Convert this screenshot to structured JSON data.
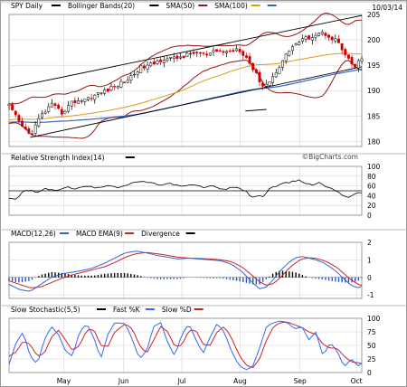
{
  "header": {
    "symbol_label": "SPY Daily",
    "date": "10/03/14",
    "watermark": "©BigCharts.com"
  },
  "colors": {
    "price_up": "#000000",
    "price_down": "#cc0000",
    "bollinger": "#8b1a1a",
    "sma50": "#d4a017",
    "sma100": "#3366cc",
    "channel": "#000000",
    "hist_pos": "#000000",
    "hist_neg": "#2255cc",
    "fast_k": "#3366ff",
    "slow_d": "#cc2222",
    "frame": "#888888",
    "grid": "#d6d6d6",
    "sep": "#bbbbbb"
  },
  "chart_data": [
    {
      "type": "candlestick",
      "name": "price",
      "legend": [
        {
          "label": "SPY Daily",
          "color": "#000000"
        },
        {
          "label": "Bollinger Bands(20)",
          "color": "#000000"
        },
        {
          "label": "SMA(50)",
          "color": "#8b1a1a"
        },
        {
          "label": "SMA(100)",
          "color": "#d4a017"
        },
        {
          "label": "",
          "color": "#3366cc"
        }
      ],
      "ylim": [
        179,
        205
      ],
      "yticks": [
        180,
        185,
        190,
        195,
        200,
        205
      ],
      "xlim": [
        0,
        1
      ],
      "anchors": [
        [
          0.0,
          187.0
        ],
        [
          0.03,
          183.5
        ],
        [
          0.06,
          181.2
        ],
        [
          0.09,
          185.0
        ],
        [
          0.12,
          187.2
        ],
        [
          0.15,
          185.6
        ],
        [
          0.18,
          187.8
        ],
        [
          0.22,
          188.4
        ],
        [
          0.26,
          189.6
        ],
        [
          0.3,
          190.8
        ],
        [
          0.34,
          192.3
        ],
        [
          0.37,
          194.5
        ],
        [
          0.4,
          195.0
        ],
        [
          0.44,
          196.4
        ],
        [
          0.47,
          196.3
        ],
        [
          0.5,
          196.9
        ],
        [
          0.53,
          197.6
        ],
        [
          0.56,
          196.9
        ],
        [
          0.59,
          197.8
        ],
        [
          0.62,
          197.6
        ],
        [
          0.65,
          198.4
        ],
        [
          0.675,
          196.4
        ],
        [
          0.7,
          193.2
        ],
        [
          0.72,
          191.0
        ],
        [
          0.74,
          191.8
        ],
        [
          0.76,
          194.2
        ],
        [
          0.78,
          196.4
        ],
        [
          0.8,
          198.6
        ],
        [
          0.83,
          199.9
        ],
        [
          0.86,
          200.8
        ],
        [
          0.88,
          201.4
        ],
        [
          0.9,
          201.1
        ],
        [
          0.92,
          200.2
        ],
        [
          0.935,
          199.4
        ],
        [
          0.95,
          197.0
        ],
        [
          0.965,
          195.8
        ],
        [
          0.98,
          194.4
        ],
        [
          0.99,
          195.6
        ],
        [
          1.0,
          196.2
        ]
      ],
      "channel_lines": [
        {
          "x": [
            0.0,
            1.0
          ],
          "y": [
            190.5,
            204.8
          ]
        },
        {
          "x": [
            0.06,
            1.0
          ],
          "y": [
            180.8,
            194.7
          ]
        }
      ],
      "segments": [
        {
          "x": [
            0.67,
            0.73
          ],
          "y": [
            186.0,
            186.3
          ]
        }
      ]
    },
    {
      "type": "line",
      "name": "rsi",
      "legend": [
        {
          "label": "Relative Strength Index(14)",
          "color": "#000000"
        }
      ],
      "ylim": [
        0,
        100
      ],
      "yticks": [
        0,
        20,
        40,
        60,
        80,
        100
      ],
      "reference_line": 50,
      "anchors": [
        [
          0.0,
          35
        ],
        [
          0.02,
          33
        ],
        [
          0.04,
          48
        ],
        [
          0.06,
          52
        ],
        [
          0.08,
          45
        ],
        [
          0.1,
          55
        ],
        [
          0.13,
          50
        ],
        [
          0.16,
          58
        ],
        [
          0.19,
          54
        ],
        [
          0.22,
          60
        ],
        [
          0.25,
          55
        ],
        [
          0.28,
          62
        ],
        [
          0.31,
          57
        ],
        [
          0.34,
          63
        ],
        [
          0.37,
          70
        ],
        [
          0.4,
          66
        ],
        [
          0.43,
          62
        ],
        [
          0.46,
          65
        ],
        [
          0.49,
          58
        ],
        [
          0.52,
          63
        ],
        [
          0.55,
          57
        ],
        [
          0.58,
          60
        ],
        [
          0.61,
          52
        ],
        [
          0.64,
          58
        ],
        [
          0.67,
          50
        ],
        [
          0.69,
          35
        ],
        [
          0.705,
          42
        ],
        [
          0.72,
          38
        ],
        [
          0.74,
          55
        ],
        [
          0.76,
          60
        ],
        [
          0.78,
          65
        ],
        [
          0.8,
          68
        ],
        [
          0.82,
          72
        ],
        [
          0.84,
          66
        ],
        [
          0.86,
          62
        ],
        [
          0.88,
          67
        ],
        [
          0.9,
          58
        ],
        [
          0.92,
          54
        ],
        [
          0.94,
          44
        ],
        [
          0.96,
          36
        ],
        [
          0.975,
          42
        ],
        [
          0.99,
          45
        ],
        [
          1.0,
          46
        ]
      ]
    },
    {
      "type": "line",
      "name": "macd",
      "legend": [
        {
          "label": "MACD(12,26)",
          "color": "#3366cc"
        },
        {
          "label": "MACD EMA(9)",
          "color": "#cc2222"
        },
        {
          "label": "Divergence",
          "color": "#000000"
        }
      ],
      "ylim": [
        -1.2,
        2
      ],
      "yticks": [
        -1,
        0,
        1,
        2
      ],
      "macd_anchors": [
        [
          0.0,
          -0.4
        ],
        [
          0.03,
          -0.7
        ],
        [
          0.06,
          -0.8
        ],
        [
          0.09,
          -0.4
        ],
        [
          0.12,
          0.0
        ],
        [
          0.15,
          0.2
        ],
        [
          0.18,
          0.3
        ],
        [
          0.21,
          0.4
        ],
        [
          0.24,
          0.55
        ],
        [
          0.27,
          0.8
        ],
        [
          0.3,
          1.1
        ],
        [
          0.33,
          1.4
        ],
        [
          0.36,
          1.5
        ],
        [
          0.39,
          1.4
        ],
        [
          0.42,
          1.25
        ],
        [
          0.45,
          1.15
        ],
        [
          0.48,
          1.05
        ],
        [
          0.51,
          1.1
        ],
        [
          0.54,
          1.05
        ],
        [
          0.57,
          1.0
        ],
        [
          0.6,
          0.95
        ],
        [
          0.63,
          0.75
        ],
        [
          0.66,
          0.35
        ],
        [
          0.69,
          -0.3
        ],
        [
          0.71,
          -0.65
        ],
        [
          0.73,
          -0.55
        ],
        [
          0.75,
          -0.1
        ],
        [
          0.77,
          0.4
        ],
        [
          0.79,
          0.8
        ],
        [
          0.81,
          1.1
        ],
        [
          0.83,
          1.2
        ],
        [
          0.85,
          1.1
        ],
        [
          0.87,
          1.0
        ],
        [
          0.89,
          0.85
        ],
        [
          0.91,
          0.6
        ],
        [
          0.93,
          0.3
        ],
        [
          0.95,
          -0.1
        ],
        [
          0.97,
          -0.45
        ],
        [
          0.99,
          -0.6
        ],
        [
          1.0,
          -0.5
        ]
      ],
      "signal_anchors": [
        [
          0.0,
          -0.2
        ],
        [
          0.03,
          -0.4
        ],
        [
          0.06,
          -0.6
        ],
        [
          0.09,
          -0.55
        ],
        [
          0.12,
          -0.3
        ],
        [
          0.15,
          -0.05
        ],
        [
          0.18,
          0.15
        ],
        [
          0.21,
          0.3
        ],
        [
          0.24,
          0.45
        ],
        [
          0.27,
          0.6
        ],
        [
          0.3,
          0.85
        ],
        [
          0.33,
          1.15
        ],
        [
          0.36,
          1.35
        ],
        [
          0.39,
          1.42
        ],
        [
          0.42,
          1.35
        ],
        [
          0.45,
          1.25
        ],
        [
          0.48,
          1.15
        ],
        [
          0.51,
          1.1
        ],
        [
          0.54,
          1.08
        ],
        [
          0.57,
          1.05
        ],
        [
          0.6,
          1.0
        ],
        [
          0.63,
          0.9
        ],
        [
          0.66,
          0.6
        ],
        [
          0.69,
          0.1
        ],
        [
          0.71,
          -0.25
        ],
        [
          0.73,
          -0.45
        ],
        [
          0.75,
          -0.35
        ],
        [
          0.77,
          0.0
        ],
        [
          0.79,
          0.45
        ],
        [
          0.81,
          0.8
        ],
        [
          0.83,
          1.05
        ],
        [
          0.85,
          1.12
        ],
        [
          0.87,
          1.08
        ],
        [
          0.89,
          0.97
        ],
        [
          0.91,
          0.8
        ],
        [
          0.93,
          0.55
        ],
        [
          0.95,
          0.2
        ],
        [
          0.97,
          -0.15
        ],
        [
          0.99,
          -0.4
        ],
        [
          1.0,
          -0.45
        ]
      ]
    },
    {
      "type": "line",
      "name": "stochastic",
      "legend": [
        {
          "label": "Slow Stochastic(5,5)",
          "color": "#000000"
        },
        {
          "label": "Fast %K",
          "color": "#3366ff"
        },
        {
          "label": "Slow %D",
          "color": "#cc2222"
        }
      ],
      "ylim": [
        0,
        100
      ],
      "yticks": [
        0,
        25,
        50,
        75,
        100
      ],
      "k_anchors": [
        [
          0.0,
          15
        ],
        [
          0.02,
          55
        ],
        [
          0.04,
          75
        ],
        [
          0.06,
          30
        ],
        [
          0.08,
          15
        ],
        [
          0.1,
          60
        ],
        [
          0.12,
          85
        ],
        [
          0.14,
          70
        ],
        [
          0.16,
          40
        ],
        [
          0.18,
          30
        ],
        [
          0.2,
          75
        ],
        [
          0.22,
          90
        ],
        [
          0.24,
          65
        ],
        [
          0.26,
          25
        ],
        [
          0.28,
          70
        ],
        [
          0.3,
          92
        ],
        [
          0.33,
          90
        ],
        [
          0.35,
          60
        ],
        [
          0.37,
          25
        ],
        [
          0.39,
          40
        ],
        [
          0.41,
          85
        ],
        [
          0.43,
          92
        ],
        [
          0.45,
          55
        ],
        [
          0.47,
          30
        ],
        [
          0.49,
          70
        ],
        [
          0.51,
          90
        ],
        [
          0.53,
          60
        ],
        [
          0.55,
          35
        ],
        [
          0.57,
          65
        ],
        [
          0.59,
          90
        ],
        [
          0.61,
          75
        ],
        [
          0.63,
          40
        ],
        [
          0.65,
          15
        ],
        [
          0.67,
          5
        ],
        [
          0.69,
          10
        ],
        [
          0.71,
          45
        ],
        [
          0.73,
          85
        ],
        [
          0.75,
          92
        ],
        [
          0.77,
          95
        ],
        [
          0.79,
          92
        ],
        [
          0.81,
          80
        ],
        [
          0.83,
          85
        ],
        [
          0.85,
          60
        ],
        [
          0.87,
          75
        ],
        [
          0.89,
          30
        ],
        [
          0.91,
          55
        ],
        [
          0.93,
          40
        ],
        [
          0.95,
          10
        ],
        [
          0.97,
          25
        ],
        [
          0.99,
          12
        ],
        [
          1.0,
          18
        ]
      ],
      "d_anchors": [
        [
          0.0,
          30
        ],
        [
          0.02,
          38
        ],
        [
          0.04,
          58
        ],
        [
          0.06,
          52
        ],
        [
          0.08,
          30
        ],
        [
          0.1,
          35
        ],
        [
          0.12,
          65
        ],
        [
          0.14,
          78
        ],
        [
          0.16,
          60
        ],
        [
          0.18,
          40
        ],
        [
          0.2,
          50
        ],
        [
          0.22,
          78
        ],
        [
          0.24,
          80
        ],
        [
          0.26,
          50
        ],
        [
          0.28,
          48
        ],
        [
          0.3,
          75
        ],
        [
          0.33,
          90
        ],
        [
          0.35,
          80
        ],
        [
          0.37,
          50
        ],
        [
          0.39,
          35
        ],
        [
          0.41,
          60
        ],
        [
          0.43,
          85
        ],
        [
          0.45,
          75
        ],
        [
          0.47,
          48
        ],
        [
          0.49,
          50
        ],
        [
          0.51,
          78
        ],
        [
          0.53,
          78
        ],
        [
          0.55,
          52
        ],
        [
          0.57,
          50
        ],
        [
          0.59,
          75
        ],
        [
          0.61,
          85
        ],
        [
          0.63,
          65
        ],
        [
          0.65,
          35
        ],
        [
          0.67,
          15
        ],
        [
          0.69,
          8
        ],
        [
          0.71,
          25
        ],
        [
          0.73,
          60
        ],
        [
          0.75,
          85
        ],
        [
          0.77,
          92
        ],
        [
          0.79,
          93
        ],
        [
          0.81,
          88
        ],
        [
          0.83,
          83
        ],
        [
          0.85,
          75
        ],
        [
          0.87,
          70
        ],
        [
          0.89,
          52
        ],
        [
          0.91,
          45
        ],
        [
          0.93,
          45
        ],
        [
          0.95,
          30
        ],
        [
          0.97,
          20
        ],
        [
          0.99,
          18
        ],
        [
          1.0,
          16
        ]
      ],
      "x_tick_labels": [
        "May",
        "Jun",
        "Jul",
        "Aug",
        "Sep",
        "Oct"
      ],
      "x_tick_positions": [
        0.155,
        0.325,
        0.49,
        0.655,
        0.825,
        0.985
      ]
    }
  ]
}
